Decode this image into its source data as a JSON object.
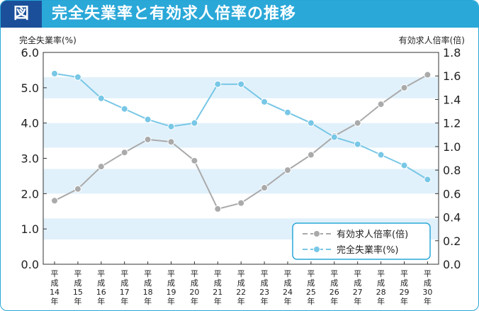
{
  "header": {
    "tag": "図",
    "title": "完全失業率と有効求人倍率の推移"
  },
  "chart_data": {
    "type": "line",
    "title": "完全失業率と有効求人倍率の推移",
    "categories": [
      "平成14年",
      "平成15年",
      "平成16年",
      "平成17年",
      "平成18年",
      "平成19年",
      "平成20年",
      "平成21年",
      "平成22年",
      "平成23年",
      "平成24年",
      "平成25年",
      "平成26年",
      "平成27年",
      "平成28年",
      "平成29年",
      "平成30年"
    ],
    "ylabel_left": "完全失業率(%)",
    "ylabel_right": "有効求人倍率(倍)",
    "ylim_left": [
      0,
      6
    ],
    "ylim_right": [
      0,
      1.8
    ],
    "yticks_left": [
      "0.0",
      "1.0",
      "2.0",
      "3.0",
      "4.0",
      "5.0",
      "6.0"
    ],
    "yticks_right": [
      "0.0",
      "0.2",
      "0.4",
      "0.6",
      "0.8",
      "1.0",
      "1.2",
      "1.4",
      "1.6",
      "1.8"
    ],
    "legend_position": "bottom-right",
    "series": [
      {
        "name": "有効求人倍率(倍)",
        "axis": "right",
        "color": "#aaaaaa",
        "values": [
          0.54,
          0.64,
          0.83,
          0.95,
          1.06,
          1.04,
          0.88,
          0.47,
          0.52,
          0.65,
          0.8,
          0.93,
          1.09,
          1.2,
          1.36,
          1.5,
          1.61
        ]
      },
      {
        "name": "完全失業率(%)",
        "axis": "left",
        "color": "#78c7e6",
        "values": [
          5.4,
          5.3,
          4.7,
          4.4,
          4.1,
          3.9,
          4.0,
          5.1,
          5.1,
          4.6,
          4.3,
          4.0,
          3.6,
          3.4,
          3.1,
          2.8,
          2.4
        ]
      }
    ],
    "bands": [
      [
        0.7,
        1.3
      ],
      [
        2.0,
        2.7
      ],
      [
        3.3,
        4.0
      ],
      [
        4.7,
        5.3
      ]
    ]
  }
}
